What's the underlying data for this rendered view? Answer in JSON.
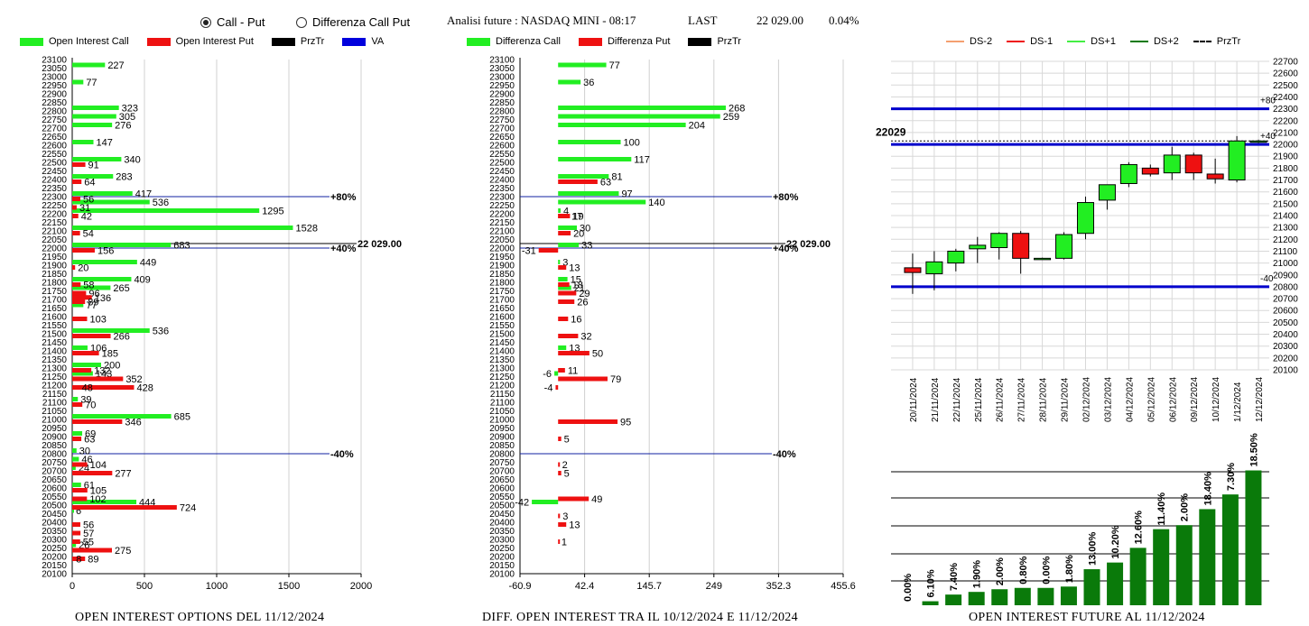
{
  "controls": {
    "mode_options": [
      {
        "label": "Call - Put",
        "selected": true
      },
      {
        "label": "Differenza Call Put",
        "selected": false
      }
    ]
  },
  "header": {
    "analysis": "Analisi future : NASDAQ MINI - 08:17",
    "last_label": "LAST",
    "last_value": "22 029.00",
    "change": "0.04%"
  },
  "colors": {
    "green": "#22ee22",
    "red": "#ee1111",
    "black": "#000000",
    "blue": "#0000dd",
    "dark_green": "#0a7a0a"
  },
  "chart_data": [
    {
      "id": "oi-options",
      "type": "bar",
      "orientation": "horizontal",
      "title": "OPEN INTEREST OPTIONS DEL 11/12/2024",
      "legend": [
        "Open Interest Call",
        "Open Interest Put",
        "PrzTr",
        "VA"
      ],
      "strikes": [
        23100,
        23050,
        23000,
        22950,
        22900,
        22850,
        22800,
        22750,
        22700,
        22650,
        22600,
        22550,
        22500,
        22450,
        22400,
        22350,
        22300,
        22250,
        22200,
        22150,
        22100,
        22050,
        22000,
        21950,
        21900,
        21850,
        21800,
        21750,
        21700,
        21650,
        21600,
        21550,
        21500,
        21450,
        21400,
        21350,
        21300,
        21250,
        21200,
        21150,
        21100,
        21050,
        21000,
        20950,
        20900,
        20850,
        20800,
        20750,
        20700,
        20650,
        20600,
        20550,
        20500,
        20450,
        20400,
        20350,
        20300,
        20250,
        20200,
        20150,
        20100
      ],
      "series": [
        {
          "name": "Open Interest Call",
          "points": [
            [
              23050,
              227
            ],
            [
              22950,
              77
            ],
            [
              22800,
              323
            ],
            [
              22750,
              305
            ],
            [
              22700,
              276
            ],
            [
              22600,
              147
            ],
            [
              22500,
              340
            ],
            [
              22400,
              283
            ],
            [
              22300,
              417
            ],
            [
              22250,
              536
            ],
            [
              22200,
              1295
            ],
            [
              22100,
              1528
            ],
            [
              22000,
              683
            ],
            [
              21900,
              449
            ],
            [
              21800,
              409
            ],
            [
              21750,
              265
            ],
            [
              21650,
              77
            ],
            [
              21500,
              536
            ],
            [
              21400,
              106
            ],
            [
              21300,
              200
            ],
            [
              21250,
              143
            ],
            [
              21100,
              39
            ],
            [
              21000,
              685
            ],
            [
              20900,
              69
            ],
            [
              20800,
              30
            ],
            [
              20750,
              46
            ],
            [
              20700,
              24
            ],
            [
              20600,
              61
            ],
            [
              20500,
              444
            ],
            [
              20450,
              6
            ],
            [
              20250,
              26
            ]
          ]
        },
        {
          "name": "Open Interest Put",
          "points": [
            [
              22500,
              91
            ],
            [
              22400,
              64
            ],
            [
              22300,
              56
            ],
            [
              22250,
              31
            ],
            [
              22200,
              42
            ],
            [
              22100,
              54
            ],
            [
              22000,
              156
            ],
            [
              21900,
              20
            ],
            [
              21800,
              58
            ],
            [
              21750,
              96
            ],
            [
              21725,
              136
            ],
            [
              21700,
              89
            ],
            [
              21600,
              103
            ],
            [
              21500,
              266
            ],
            [
              21400,
              185
            ],
            [
              21300,
              132
            ],
            [
              21250,
              352
            ],
            [
              21200,
              428
            ],
            [
              21200,
              48
            ],
            [
              21100,
              70
            ],
            [
              21000,
              346
            ],
            [
              20900,
              63
            ],
            [
              20750,
              104
            ],
            [
              20700,
              277
            ],
            [
              20600,
              105
            ],
            [
              20550,
              102
            ],
            [
              20500,
              724
            ],
            [
              20400,
              56
            ],
            [
              20350,
              57
            ],
            [
              20300,
              55
            ],
            [
              20250,
              275
            ],
            [
              20200,
              89
            ],
            [
              20200,
              8
            ]
          ]
        }
      ],
      "przTr": 22029,
      "przTr_label": "22 029.00",
      "va_lines": [
        {
          "strike": 22300,
          "label": "+80%"
        },
        {
          "strike": 22000,
          "label": "+40%"
        },
        {
          "strike": 20800,
          "label": "-40%"
        }
      ],
      "xlim": [
        0,
        2000
      ],
      "xticks": [
        0,
        500,
        1000,
        1500,
        2000
      ],
      "legend_position": "top"
    },
    {
      "id": "oi-diff",
      "type": "bar",
      "orientation": "horizontal",
      "title": "DIFF. OPEN INTEREST TRA IL 10/12/2024 E 11/12/2024",
      "legend": [
        "Differenza Call",
        "Differenza Put",
        "PrzTr"
      ],
      "strikes": [
        23100,
        23050,
        23000,
        22950,
        22900,
        22850,
        22800,
        22750,
        22700,
        22650,
        22600,
        22550,
        22500,
        22450,
        22400,
        22350,
        22300,
        22250,
        22200,
        22150,
        22100,
        22050,
        22000,
        21950,
        21900,
        21850,
        21800,
        21750,
        21700,
        21650,
        21600,
        21550,
        21500,
        21450,
        21400,
        21350,
        21300,
        21250,
        21200,
        21150,
        21100,
        21050,
        21000,
        20950,
        20900,
        20850,
        20800,
        20750,
        20700,
        20650,
        20600,
        20550,
        20500,
        20450,
        20400,
        20350,
        20300,
        20250,
        20200,
        20150,
        20100
      ],
      "series": [
        {
          "name": "Differenza Call",
          "points": [
            [
              23050,
              77
            ],
            [
              22950,
              36
            ],
            [
              22800,
              268
            ],
            [
              22750,
              259
            ],
            [
              22700,
              204
            ],
            [
              22600,
              100
            ],
            [
              22500,
              117
            ],
            [
              22400,
              81
            ],
            [
              22300,
              97
            ],
            [
              22250,
              140
            ],
            [
              22200,
              4
            ],
            [
              22100,
              30
            ],
            [
              22000,
              33
            ],
            [
              21900,
              3
            ],
            [
              21800,
              15
            ],
            [
              21750,
              21
            ],
            [
              21400,
              13
            ],
            [
              21250,
              -6
            ],
            [
              20500,
              -42
            ]
          ]
        },
        {
          "name": "Differenza Put",
          "points": [
            [
              22400,
              63
            ],
            [
              22200,
              19
            ],
            [
              22200,
              17
            ],
            [
              22100,
              20
            ],
            [
              22000,
              -31
            ],
            [
              21900,
              13
            ],
            [
              21800,
              18
            ],
            [
              21750,
              29
            ],
            [
              21700,
              26
            ],
            [
              21600,
              16
            ],
            [
              21500,
              32
            ],
            [
              21400,
              50
            ],
            [
              21300,
              11
            ],
            [
              21250,
              79
            ],
            [
              21200,
              -4
            ],
            [
              21000,
              95
            ],
            [
              20900,
              5
            ],
            [
              20750,
              2
            ],
            [
              20700,
              5
            ],
            [
              20550,
              49
            ],
            [
              20450,
              3
            ],
            [
              20400,
              13
            ],
            [
              20300,
              1
            ]
          ]
        }
      ],
      "przTr": 22029,
      "przTr_label": "22 029.00",
      "va_lines": [
        {
          "strike": 22300,
          "label": "+80%"
        },
        {
          "strike": 22000,
          "label": "+40%"
        },
        {
          "strike": 20800,
          "label": "-40%"
        }
      ],
      "xlim": [
        -60.9,
        455.6
      ],
      "xticks": [
        "-60.9",
        "42.4",
        "145.7",
        "249",
        "352.3",
        "455.6"
      ],
      "legend_position": "top"
    },
    {
      "id": "future-candles",
      "type": "candlestick",
      "legend": [
        "DS-2",
        "DS-1",
        "DS+1",
        "DS+2",
        "PrzTr"
      ],
      "dates": [
        "20/11/2024",
        "21/11/2024",
        "22/11/2024",
        "25/11/2024",
        "26/11/2024",
        "27/11/2024",
        "28/11/2024",
        "29/11/2024",
        "02/12/2024",
        "03/12/2024",
        "04/12/2024",
        "05/12/2024",
        "06/12/2024",
        "09/12/2024",
        "10/12/2024",
        "1/12/2024",
        "12/12/2024"
      ],
      "ohlc": [
        {
          "o": 20960,
          "h": 21080,
          "l": 20740,
          "c": 20920
        },
        {
          "o": 20910,
          "h": 21100,
          "l": 20770,
          "c": 21010
        },
        {
          "o": 21000,
          "h": 21120,
          "l": 20930,
          "c": 21100
        },
        {
          "o": 21120,
          "h": 21220,
          "l": 21000,
          "c": 21150
        },
        {
          "o": 21130,
          "h": 21260,
          "l": 21030,
          "c": 21250
        },
        {
          "o": 21250,
          "h": 21270,
          "l": 20910,
          "c": 21040
        },
        {
          "o": 21040,
          "h": 21045,
          "l": 21035,
          "c": 21040
        },
        {
          "o": 21040,
          "h": 21260,
          "l": 21030,
          "c": 21240
        },
        {
          "o": 21250,
          "h": 21560,
          "l": 21200,
          "c": 21510
        },
        {
          "o": 21530,
          "h": 21640,
          "l": 21450,
          "c": 21660
        },
        {
          "o": 21670,
          "h": 21850,
          "l": 21640,
          "c": 21830
        },
        {
          "o": 21800,
          "h": 21830,
          "l": 21730,
          "c": 21750
        },
        {
          "o": 21760,
          "h": 21980,
          "l": 21700,
          "c": 21910
        },
        {
          "o": 21910,
          "h": 21930,
          "l": 21700,
          "c": 21760
        },
        {
          "o": 21750,
          "h": 21880,
          "l": 21670,
          "c": 21710
        },
        {
          "o": 21700,
          "h": 22070,
          "l": 21680,
          "c": 22029
        },
        {
          "o": 22029,
          "h": 22040,
          "l": 22010,
          "c": 22029
        }
      ],
      "przTr": 22029,
      "przTr_label": "22029",
      "levels": [
        {
          "value": 22300,
          "label": "+80"
        },
        {
          "value": 22000,
          "label": "+40"
        },
        {
          "value": 20800,
          "label": "-40"
        }
      ],
      "ylim": [
        20100,
        22700
      ],
      "yticks": [
        22700,
        22600,
        22500,
        22400,
        22300,
        22200,
        22100,
        22000,
        21900,
        21800,
        21700,
        21600,
        21500,
        21400,
        21300,
        21200,
        21100,
        21000,
        20900,
        20800,
        20700,
        20600,
        20500,
        20400,
        20300,
        20200,
        20100
      ],
      "legend_position": "top"
    },
    {
      "id": "oi-future",
      "type": "bar",
      "title": "OPEN INTEREST FUTURE AL 11/12/2024",
      "labels": [
        "0.00%",
        "6.10%",
        "7.40%",
        "1.90%",
        "2.00%",
        "0.80%",
        "0.00%",
        "1.80%",
        "13.00%",
        "10.20%",
        "12.60%",
        "11.40%",
        "2.00%",
        "18.40%",
        "7.30%",
        "18.50%"
      ],
      "values": [
        0,
        3,
        8,
        10,
        12,
        13,
        13,
        14,
        27,
        32,
        43,
        57,
        60,
        72,
        83,
        101
      ]
    }
  ],
  "footers": {
    "left": "OPEN INTEREST OPTIONS DEL 11/12/2024",
    "middle": "DIFF. OPEN INTEREST TRA IL 10/12/2024 E 11/12/2024",
    "right": "OPEN INTEREST FUTURE AL 11/12/2024"
  }
}
